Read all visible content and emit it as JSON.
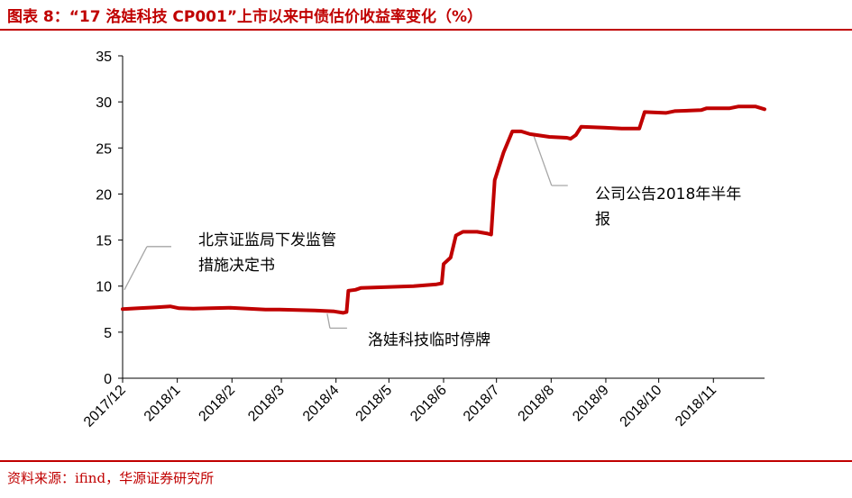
{
  "header": {
    "title": "图表 8：“17 洛娃科技 CP001”上市以来中债估价收益率变化（%）"
  },
  "footer": {
    "source": "资料来源：ifind，华源证券研究所"
  },
  "colors": {
    "accent": "#c00000",
    "series": "#c00000",
    "annotation_line": "#a6a6a6",
    "axis": "#000000"
  },
  "chart_data": {
    "type": "line",
    "title": "",
    "xlabel": "",
    "ylabel": "",
    "ylim": [
      0,
      35
    ],
    "yticks": [
      "0",
      "5",
      "10",
      "15",
      "20",
      "25",
      "30",
      "35"
    ],
    "xlim": [
      "2017-12-01",
      "2018-11-30"
    ],
    "xticks": [
      {
        "date": "2017-12-01",
        "label": "2017/12"
      },
      {
        "date": "2018-01-01",
        "label": "2018/1"
      },
      {
        "date": "2018-02-01",
        "label": "2018/2"
      },
      {
        "date": "2018-03-01",
        "label": "2018/3"
      },
      {
        "date": "2018-04-01",
        "label": "2018/4"
      },
      {
        "date": "2018-05-01",
        "label": "2018/5"
      },
      {
        "date": "2018-06-01",
        "label": "2018/6"
      },
      {
        "date": "2018-07-01",
        "label": "2018/7"
      },
      {
        "date": "2018-08-01",
        "label": "2018/8"
      },
      {
        "date": "2018-09-01",
        "label": "2018/9"
      },
      {
        "date": "2018-10-01",
        "label": "2018/10"
      },
      {
        "date": "2018-11-01",
        "label": "2018/11"
      }
    ],
    "grid": false,
    "legend": "none",
    "series": [
      {
        "points": [
          [
            "2017-12-01",
            7.5
          ],
          [
            "2017-12-10",
            7.6
          ],
          [
            "2017-12-20",
            7.7
          ],
          [
            "2017-12-28",
            7.8
          ],
          [
            "2018-01-02",
            7.6
          ],
          [
            "2018-01-10",
            7.55
          ],
          [
            "2018-01-20",
            7.6
          ],
          [
            "2018-01-31",
            7.65
          ],
          [
            "2018-02-10",
            7.55
          ],
          [
            "2018-02-20",
            7.45
          ],
          [
            "2018-02-28",
            7.45
          ],
          [
            "2018-03-10",
            7.4
          ],
          [
            "2018-03-20",
            7.35
          ],
          [
            "2018-03-31",
            7.25
          ],
          [
            "2018-04-05",
            7.1
          ],
          [
            "2018-04-07",
            7.2
          ],
          [
            "2018-04-08",
            9.5
          ],
          [
            "2018-04-12",
            9.6
          ],
          [
            "2018-04-15",
            9.8
          ],
          [
            "2018-04-30",
            9.9
          ],
          [
            "2018-05-15",
            10.0
          ],
          [
            "2018-05-28",
            10.2
          ],
          [
            "2018-05-31",
            10.3
          ],
          [
            "2018-06-01",
            12.4
          ],
          [
            "2018-06-05",
            13.1
          ],
          [
            "2018-06-08",
            15.5
          ],
          [
            "2018-06-12",
            15.9
          ],
          [
            "2018-06-20",
            15.9
          ],
          [
            "2018-06-26",
            15.7
          ],
          [
            "2018-06-28",
            15.6
          ],
          [
            "2018-06-30",
            21.5
          ],
          [
            "2018-07-05",
            24.5
          ],
          [
            "2018-07-10",
            26.8
          ],
          [
            "2018-07-15",
            26.8
          ],
          [
            "2018-07-20",
            26.5
          ],
          [
            "2018-07-31",
            26.2
          ],
          [
            "2018-08-10",
            26.1
          ],
          [
            "2018-08-12",
            26.0
          ],
          [
            "2018-08-15",
            26.4
          ],
          [
            "2018-08-18",
            27.3
          ],
          [
            "2018-08-31",
            27.2
          ],
          [
            "2018-09-10",
            27.1
          ],
          [
            "2018-09-20",
            27.1
          ],
          [
            "2018-09-23",
            28.9
          ],
          [
            "2018-10-05",
            28.8
          ],
          [
            "2018-10-10",
            29.0
          ],
          [
            "2018-10-25",
            29.1
          ],
          [
            "2018-10-28",
            29.3
          ],
          [
            "2018-11-10",
            29.3
          ],
          [
            "2018-11-15",
            29.5
          ],
          [
            "2018-11-25",
            29.5
          ],
          [
            "2018-11-30",
            29.2
          ]
        ]
      }
    ],
    "annotations": [
      {
        "text": "北京证监局下发监管",
        "text2": "措施决定书",
        "date": "2017-12-02",
        "value": 9.6
      },
      {
        "text": "洛娃科技临时停牌",
        "text2": "",
        "date": "2018-03-27",
        "value": 7.0
      },
      {
        "text": "公司公告2018年半年",
        "text2": "报",
        "date": "2018-07-22",
        "value": 26.4
      }
    ]
  }
}
